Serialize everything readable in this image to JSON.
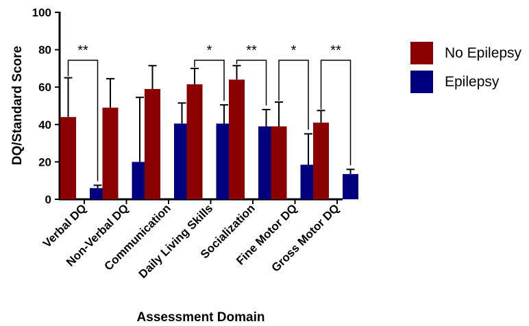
{
  "chart_data": {
    "type": "bar",
    "title": "",
    "xlabel": "Assessment Domain",
    "ylabel": "DQ/Standard Score",
    "ylim": [
      0,
      100
    ],
    "yticks": [
      "0",
      "20",
      "40",
      "60",
      "80",
      "100"
    ],
    "categories": [
      "Verbal DQ",
      "Non-Verbal DQ",
      "Communication",
      "Daily Living Skills",
      "Socialization",
      "Fine Motor DQ",
      "Gross Motor DQ"
    ],
    "series": [
      {
        "name": "No Epilepsy",
        "color": "#8b0000",
        "values": [
          44,
          49,
          59,
          61.5,
          64,
          39,
          41
        ],
        "error_upper": [
          65,
          64.5,
          71.5,
          70,
          71.5,
          52,
          47.5
        ]
      },
      {
        "name": "Epilepsy",
        "color": "#00007f",
        "values": [
          6,
          20,
          40.5,
          40.5,
          39,
          18.5,
          13.5
        ],
        "error_upper": [
          7.5,
          54.5,
          51.5,
          50.5,
          48,
          35,
          16
        ]
      }
    ],
    "significance": [
      {
        "category_index": 0,
        "label": "**"
      },
      {
        "category_index": 3,
        "label": "*"
      },
      {
        "category_index": 4,
        "label": "**"
      },
      {
        "category_index": 5,
        "label": "*"
      },
      {
        "category_index": 6,
        "label": "**"
      }
    ],
    "legend_position": "top-right",
    "grid": false
  }
}
